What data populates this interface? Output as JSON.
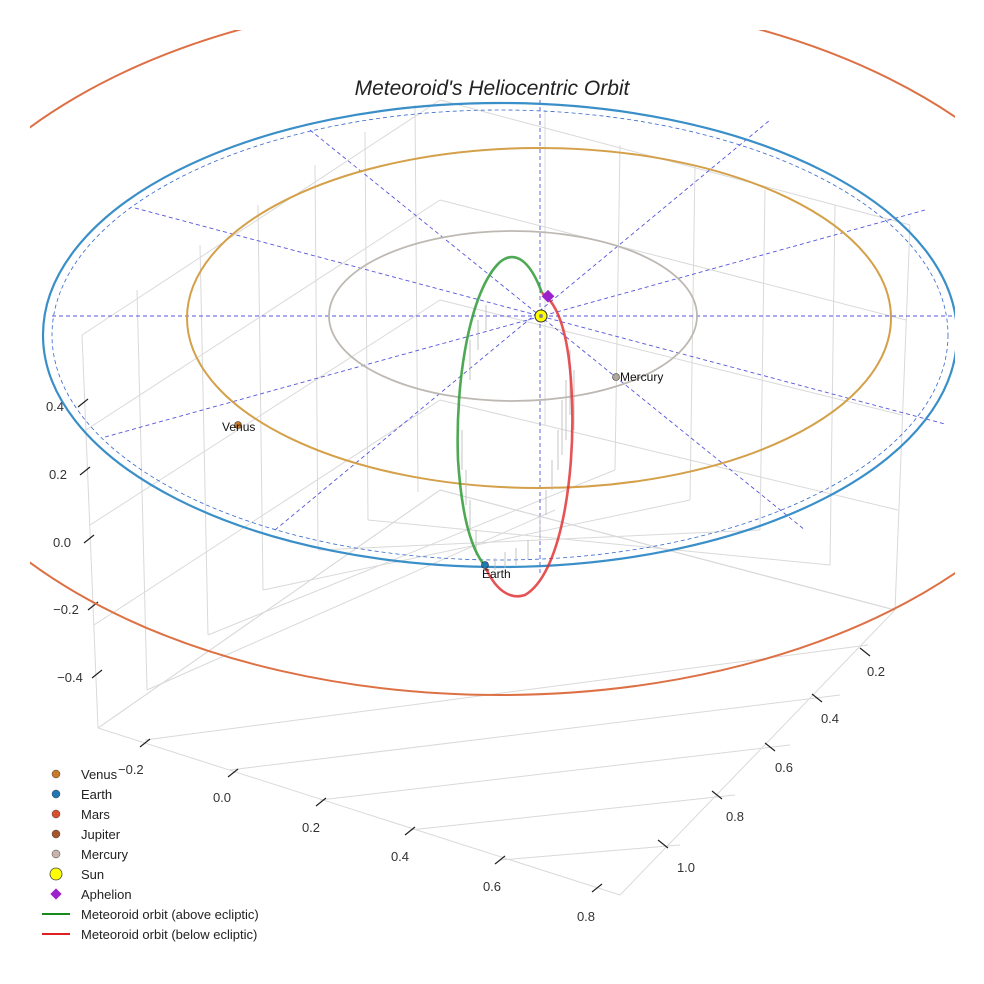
{
  "chart_data": {
    "type": "3d-orbit",
    "title": "Meteoroid's Heliocentric Orbit",
    "axes": {
      "x_ticks": [
        "−0.2",
        "0.0",
        "0.2",
        "0.4",
        "0.6",
        "0.8"
      ],
      "y_ticks": [
        "0.2",
        "0.4",
        "0.6",
        "0.8",
        "1.0"
      ],
      "z_ticks": [
        "0.4",
        "0.2",
        "0.0",
        "−0.2",
        "−0.4"
      ],
      "grid": true
    },
    "planets": [
      {
        "name": "Venus",
        "label": "Venus",
        "color": "#c77a2a"
      },
      {
        "name": "Earth",
        "label": "Earth",
        "color": "#1f77b4"
      },
      {
        "name": "Mercury",
        "label": "Mercury",
        "color": "#b0a8a0"
      }
    ],
    "orbits": [
      {
        "name": "Mercury",
        "color": "#bdb8b2"
      },
      {
        "name": "Venus",
        "color": "#d4a04a"
      },
      {
        "name": "Earth",
        "color": "#3a8fc8"
      },
      {
        "name": "Mars",
        "color": "#dd7044"
      }
    ],
    "meteoroid_orbit": {
      "above_color": "#2e9a36",
      "below_color": "#e0282a"
    },
    "legend": {
      "placement": "bottom-left",
      "entries": [
        {
          "label": "Venus",
          "marker": "dot",
          "color": "#c77a2a"
        },
        {
          "label": "Earth",
          "marker": "dot",
          "color": "#1f77b4"
        },
        {
          "label": "Mars",
          "marker": "dot",
          "color": "#d9512c"
        },
        {
          "label": "Jupiter",
          "marker": "dot",
          "color": "#a5542c"
        },
        {
          "label": "Mercury",
          "marker": "dot",
          "color": "#c9b3ad"
        },
        {
          "label": "Sun",
          "marker": "sun",
          "color": "#ffff00"
        },
        {
          "label": "Aphelion",
          "marker": "diamond",
          "color": "#9b22cc"
        },
        {
          "label": "Meteoroid orbit (above ecliptic)",
          "marker": "line",
          "color": "#1a8a1a"
        },
        {
          "label": "Meteoroid orbit (below ecliptic)",
          "marker": "line",
          "color": "#e02020"
        }
      ]
    }
  }
}
